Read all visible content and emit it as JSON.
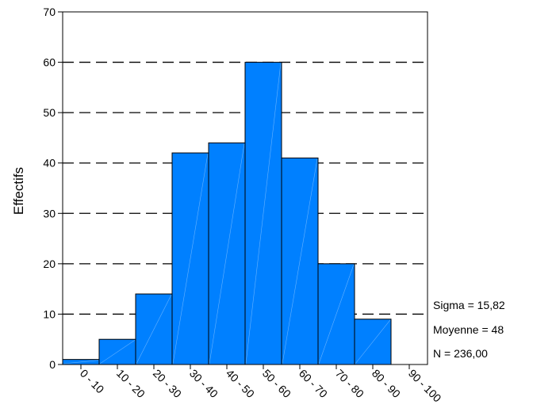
{
  "chart_data": {
    "type": "bar",
    "categories": [
      "0 - 10",
      "10 - 20",
      "20 - 30",
      "30 - 40",
      "40 - 50",
      "50 - 60",
      "60 - 70",
      "70 - 80",
      "80 - 90",
      "90 - 100"
    ],
    "values": [
      1,
      5,
      14,
      42,
      44,
      60,
      41,
      20,
      9,
      0
    ],
    "ylabel": "Effectifs",
    "xlabel": "",
    "ylim": [
      0,
      70
    ],
    "yticks": [
      0,
      10,
      20,
      30,
      40,
      50,
      60,
      70
    ],
    "grid": "dashed horizontal",
    "bar_color": "#0080ff",
    "stats": {
      "sigma": "Sigma = 15,82",
      "mean": "Moyenne = 48",
      "n": "N = 236,00"
    }
  }
}
